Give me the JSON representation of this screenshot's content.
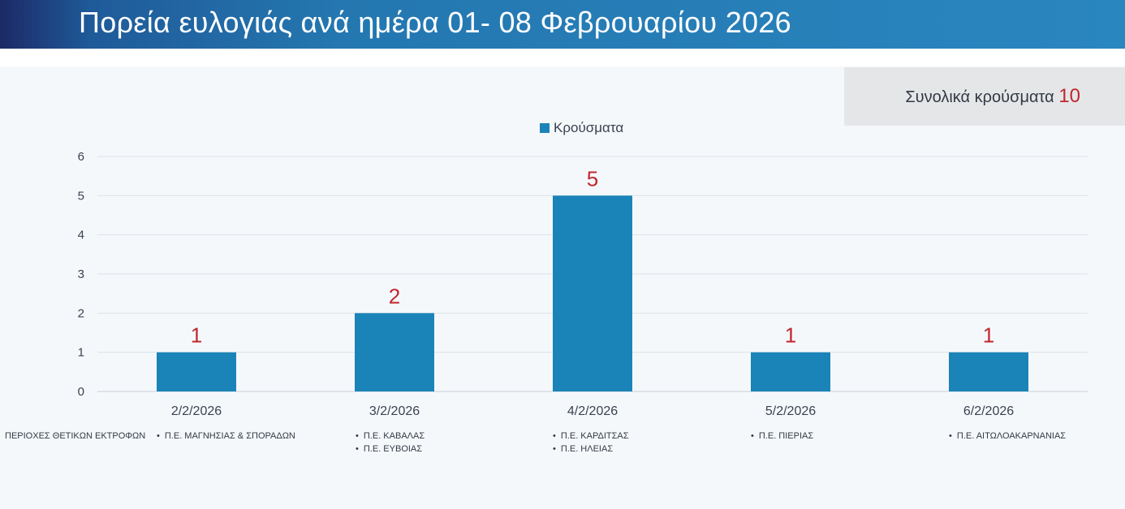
{
  "title": "Πορεία ευλογιάς ανά ημέρα 01- 08 Φεβρουαρίου 2026",
  "total": {
    "label": "Συνολικά κρούσματα",
    "value": "10"
  },
  "colors": {
    "bar": "#1a84b8",
    "data_label": "#c0272d",
    "header": "#2a86bf"
  },
  "regions_heading": "ΠΕΡΙΟΧΕΣ ΘΕΤΙΚΩΝ ΕΚΤΡΟΦΩΝ",
  "regions": [
    {
      "items": [
        "Π.Ε. ΜΑΓΝΗΣΙΑΣ & ΣΠΟΡΑΔΩΝ"
      ]
    },
    {
      "items": [
        "Π.Ε. ΚΑΒΑΛΑΣ",
        "Π.Ε. ΕΥΒΟΙΑΣ"
      ]
    },
    {
      "items": [
        "Π.Ε. ΚΑΡΔΙΤΣΑΣ",
        "Π.Ε. ΗΛΕΙΑΣ"
      ]
    },
    {
      "items": [
        "Π.Ε. ΠΙΕΡΙΑΣ"
      ]
    },
    {
      "items": [
        "Π.Ε. ΑΙΤΩΛΟΑΚΑΡΝΑΝΙΑΣ"
      ]
    }
  ],
  "chart_data": {
    "type": "bar",
    "title": "",
    "categories": [
      "2/2/2026",
      "3/2/2026",
      "4/2/2026",
      "5/2/2026",
      "6/2/2026"
    ],
    "series": [
      {
        "name": "Κρούσματα",
        "values": [
          1,
          2,
          5,
          1,
          1
        ]
      }
    ],
    "yticks": [
      0,
      1,
      2,
      3,
      4,
      5,
      6
    ],
    "ylim": [
      0,
      6
    ],
    "xlabel": "",
    "ylabel": "",
    "grid": true,
    "legend": "top-center",
    "data_labels": true
  }
}
